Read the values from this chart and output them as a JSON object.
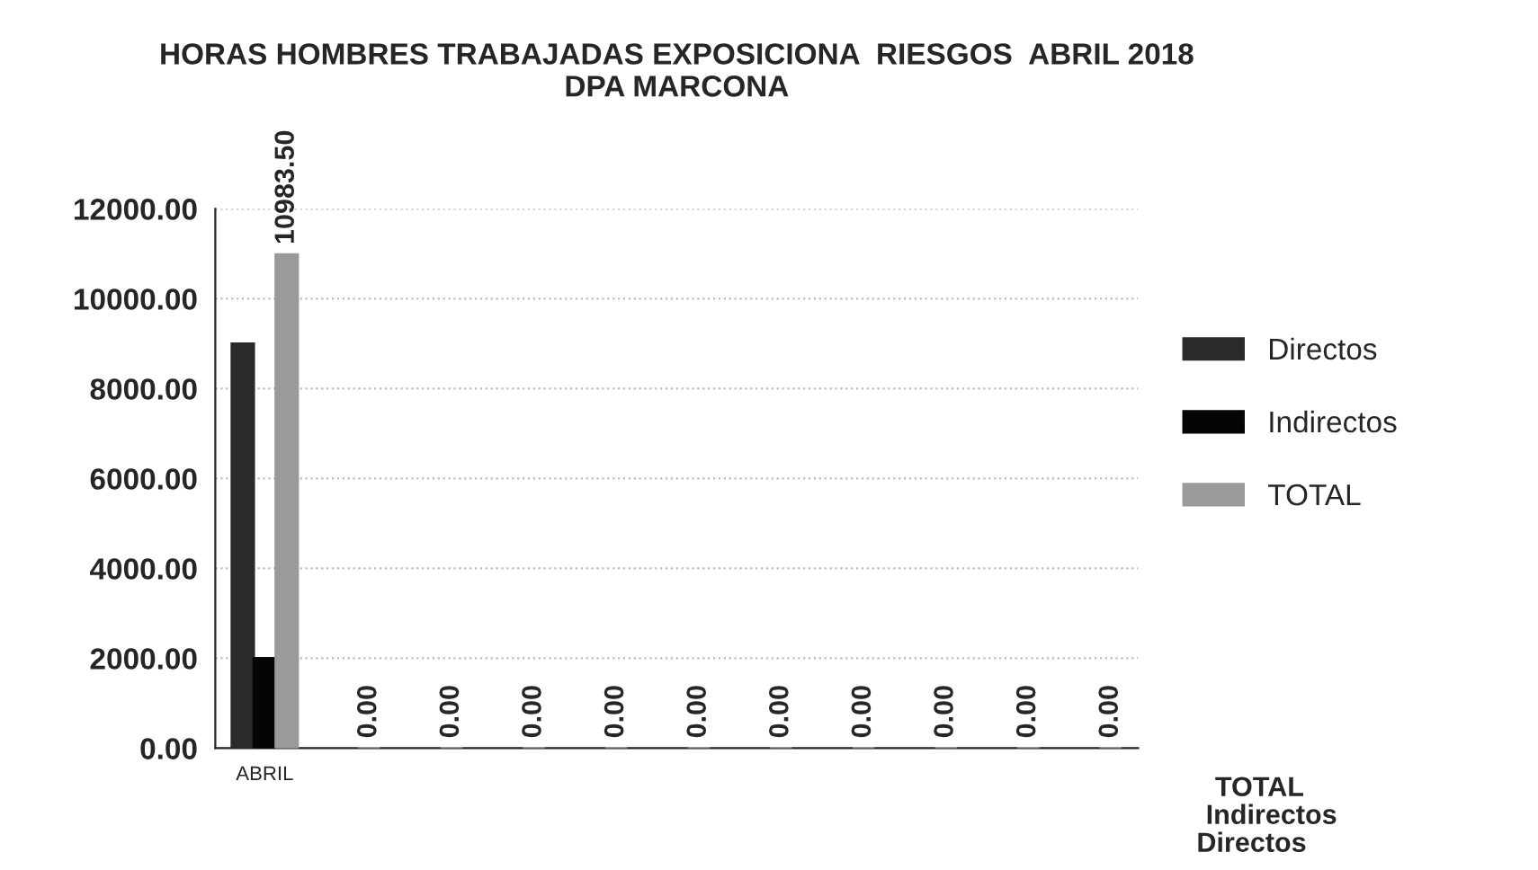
{
  "chart_data": {
    "type": "bar",
    "title": "HORAS HOMBRES TRABAJADAS EXPOSICIONA  RIESGOS  ABRIL 2018\nDPA MARCONA",
    "categories": [
      "ABRIL",
      null,
      null,
      null,
      null,
      null,
      null,
      null,
      null,
      null,
      null
    ],
    "series": [
      {
        "name": "Directos",
        "color": "#2a2a2a",
        "values": [
          9000,
          null,
          null,
          null,
          null,
          null,
          null,
          null,
          null,
          null,
          null
        ]
      },
      {
        "name": "Indirectos",
        "color": "#050505",
        "values": [
          2000,
          null,
          null,
          null,
          null,
          null,
          null,
          null,
          null,
          null,
          null
        ]
      },
      {
        "name": "TOTAL",
        "color": "#9a9a9a",
        "values": [
          10983.5,
          0,
          0,
          0,
          0,
          0,
          0,
          0,
          0,
          0,
          0
        ],
        "value_labels": [
          "10983.50",
          "0.00",
          "0.00",
          "0.00",
          "0.00",
          "0.00",
          "0.00",
          "0.00",
          "0.00",
          "0.00",
          "0.00"
        ]
      }
    ],
    "ylim": [
      0,
      12000
    ],
    "yticks": [
      {
        "value": 0,
        "label": "0.00"
      },
      {
        "value": 2000,
        "label": "2000.00"
      },
      {
        "value": 4000,
        "label": "4000.00"
      },
      {
        "value": 6000,
        "label": "6000.00"
      },
      {
        "value": 8000,
        "label": "8000.00"
      },
      {
        "value": 10000,
        "label": "10000.00"
      },
      {
        "value": 12000,
        "label": "12000.00"
      }
    ],
    "annotations": [
      "TOTAL",
      "Indirectos",
      "Directos"
    ],
    "grid": "y",
    "legend": "right"
  }
}
